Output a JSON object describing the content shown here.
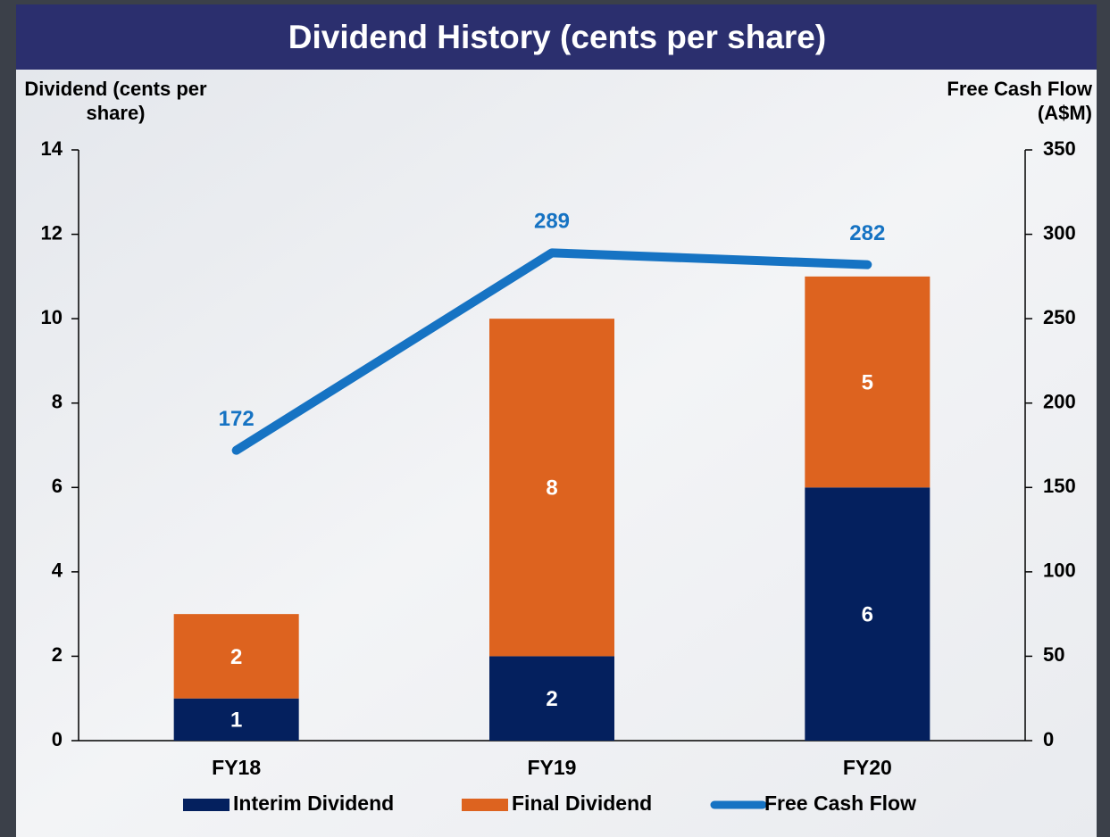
{
  "chart_data": {
    "type": "bar",
    "stacked": true,
    "title": "Dividend History (cents per share)",
    "y_label": "Dividend (cents per share)",
    "y2_label": "Free Cash Flow (A$M)",
    "categories": [
      "FY18",
      "FY19",
      "FY20"
    ],
    "series": [
      {
        "name": "Interim Dividend",
        "color": "#04205e",
        "values": [
          1,
          2,
          6
        ]
      },
      {
        "name": "Final Dividend",
        "color": "#dd631f",
        "values": [
          2,
          8,
          5
        ]
      },
      {
        "name": "Free Cash Flow",
        "color": "#1673c3",
        "type": "line",
        "axis": "y2",
        "values": [
          172,
          289,
          282
        ]
      }
    ],
    "ylim": [
      0,
      14
    ],
    "yticks": [
      0,
      2,
      4,
      6,
      8,
      10,
      12,
      14
    ],
    "y2lim": [
      0,
      350
    ],
    "y2ticks": [
      0,
      50,
      100,
      150,
      200,
      250,
      300,
      350
    ],
    "grid": false,
    "legend": "bottom"
  }
}
